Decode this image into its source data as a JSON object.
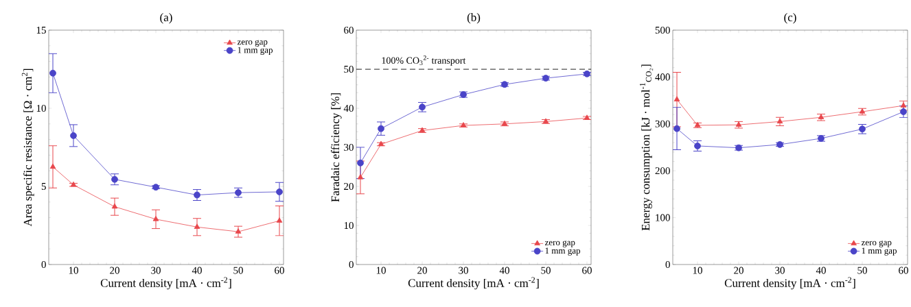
{
  "chart_data": [
    {
      "type": "line",
      "title": "(a)",
      "xlabel": "Current density [mA · cm$^{-2}$]",
      "ylabel": "Area specific resistance [Ω · cm$^{2}$]",
      "x": [
        5,
        10,
        20,
        30,
        40,
        50,
        60
      ],
      "xlim": [
        4,
        61
      ],
      "xticks": [
        10,
        20,
        30,
        40,
        50,
        60
      ],
      "ylim": [
        0,
        15
      ],
      "yticks": [
        0,
        5,
        10,
        15
      ],
      "legend": "top right",
      "series": [
        {
          "name": "zero gap",
          "color": "#e8474c",
          "marker": "triangle",
          "values": [
            6.25,
            5.1,
            3.7,
            2.9,
            2.4,
            2.1,
            2.8
          ],
          "errors": [
            1.35,
            0.1,
            0.55,
            0.6,
            0.55,
            0.35,
            0.95
          ]
        },
        {
          "name": "1 mm gap",
          "color": "#4a44c8",
          "marker": "circle",
          "values": [
            12.25,
            8.25,
            5.45,
            4.95,
            4.45,
            4.6,
            4.65
          ],
          "errors": [
            1.25,
            0.7,
            0.35,
            0.1,
            0.35,
            0.3,
            0.6
          ]
        }
      ]
    },
    {
      "type": "line",
      "title": "(b)",
      "xlabel": "Current density [mA · cm$^{-2}$]",
      "ylabel": "Faradaic efficiency [%]",
      "x": [
        5,
        10,
        20,
        30,
        40,
        50,
        60
      ],
      "xlim": [
        4,
        61
      ],
      "xticks": [
        10,
        20,
        30,
        40,
        50,
        60
      ],
      "ylim": [
        0,
        60
      ],
      "yticks": [
        0,
        10,
        20,
        30,
        40,
        50,
        60
      ],
      "legend": "bottom right",
      "ref_lines": [
        {
          "axis": "y",
          "value": 50,
          "label": "100% CO$_{3}$$^{2-}$ transport",
          "color": "#000000",
          "line_style": "dashed"
        }
      ],
      "series": [
        {
          "name": "zero gap",
          "color": "#e8474c",
          "marker": "triangle",
          "values": [
            22.3,
            30.8,
            34.3,
            35.6,
            36,
            36.6,
            37.5
          ],
          "errors": [
            4.2,
            0.4,
            0.5,
            0.4,
            0.5,
            0.5,
            0.4
          ]
        },
        {
          "name": "1 mm gap",
          "color": "#4a44c8",
          "marker": "circle",
          "values": [
            26,
            34.8,
            40.3,
            43.5,
            46.1,
            47.7,
            48.8
          ],
          "errors": [
            4,
            1.7,
            1.2,
            0.7,
            0.5,
            0.5,
            0.4
          ]
        }
      ]
    },
    {
      "type": "line",
      "title": "(c)",
      "xlabel": "Current density [mA · cm$^{-2}$]",
      "ylabel": "Energy consumption [kJ · mol$^{-1}$$_{CO₂}$]",
      "x": [
        5,
        10,
        20,
        30,
        40,
        50,
        60
      ],
      "xlim": [
        4,
        61
      ],
      "xticks": [
        10,
        20,
        30,
        40,
        50,
        60
      ],
      "ylim": [
        0,
        500
      ],
      "yticks": [
        0,
        100,
        200,
        300,
        400,
        500
      ],
      "legend": "bottom right",
      "series": [
        {
          "name": "zero gap",
          "color": "#e8474c",
          "marker": "triangle",
          "values": [
            352,
            297,
            298,
            305,
            314,
            326,
            339
          ],
          "errors": [
            58,
            5,
            7,
            9,
            7,
            7,
            10
          ]
        },
        {
          "name": "1 mm gap",
          "color": "#4a44c8",
          "marker": "circle",
          "values": [
            290,
            253,
            249,
            256,
            269,
            289,
            326
          ],
          "errors": [
            45,
            11,
            5,
            4,
            6,
            10,
            12
          ]
        }
      ]
    }
  ]
}
